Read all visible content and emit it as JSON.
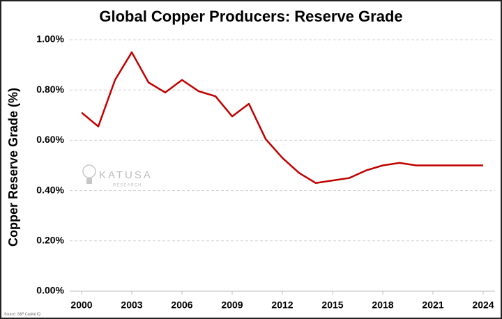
{
  "chart_data": {
    "type": "line",
    "title": "Global Copper Producers: Reserve Grade",
    "y_label": "Copper Reserve Grade (%)",
    "source": "Source: S&P Capital IQ",
    "watermark": {
      "name": "KATUSA",
      "sub": "RESEARCH"
    },
    "categories": [
      "2000",
      null,
      null,
      "2003",
      null,
      null,
      "2006",
      null,
      null,
      "2009",
      null,
      null,
      "2012",
      null,
      null,
      "2015",
      null,
      null,
      "2018",
      null,
      null,
      "2021",
      null,
      null,
      "2024"
    ],
    "series": [
      {
        "name": "Reserve Grade",
        "color": "#c00000",
        "values": [
          0.71,
          0.655,
          0.84,
          0.95,
          0.83,
          0.79,
          0.84,
          0.795,
          0.775,
          0.695,
          0.745,
          0.605,
          0.53,
          0.47,
          0.43,
          0.44,
          0.45,
          0.48,
          0.5,
          0.51,
          0.5,
          0.5,
          0.5,
          0.5,
          0.5
        ]
      }
    ],
    "ylim": [
      0,
      1
    ],
    "yticks": [
      {
        "value": 0,
        "label": "0.00%"
      },
      {
        "value": 0.2,
        "label": "0.20%"
      },
      {
        "value": 0.4,
        "label": "0.40%"
      },
      {
        "value": 0.6,
        "label": "0.60%"
      },
      {
        "value": 0.8,
        "label": "0.80%"
      },
      {
        "value": 1,
        "label": "1.00%"
      }
    ],
    "grid": true
  }
}
